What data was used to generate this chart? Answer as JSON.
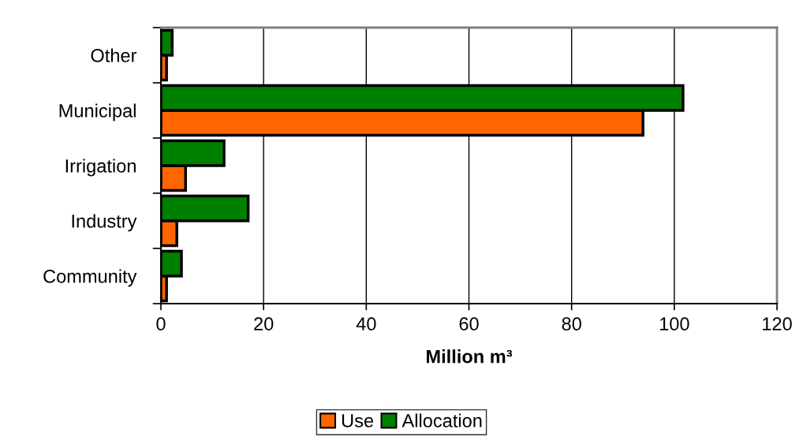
{
  "chart_data": {
    "type": "bar",
    "orientation": "horizontal",
    "xlabel": "Million m³",
    "categories": [
      "Other",
      "Municipal",
      "Irrigation",
      "Industry",
      "Community"
    ],
    "series": [
      {
        "name": "Use",
        "color": "#ff6600",
        "values": [
          1.1,
          93.9,
          4.8,
          3.1,
          1.1
        ]
      },
      {
        "name": "Allocation",
        "color": "#008000",
        "values": [
          2.2,
          101.7,
          12.3,
          17.0,
          4.0
        ]
      }
    ],
    "xlim": [
      0,
      120
    ],
    "xticks": [
      0,
      20,
      40,
      60,
      80,
      100,
      120
    ],
    "grid": "x",
    "legend": "bottom"
  }
}
